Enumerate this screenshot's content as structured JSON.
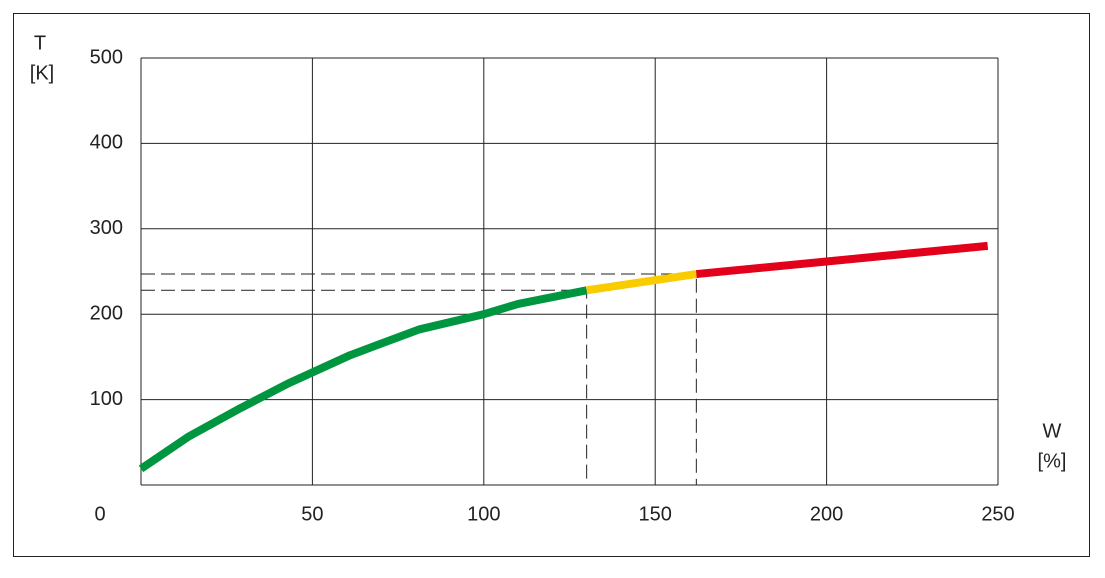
{
  "chart_data": {
    "type": "line",
    "x_label": "W",
    "x_unit": "[%]",
    "y_label": "T",
    "y_unit": "[K]",
    "xlim": [
      0,
      250
    ],
    "ylim": [
      0,
      500
    ],
    "xticks": [
      0,
      50,
      100,
      150,
      200,
      250
    ],
    "yticks": [
      100,
      200,
      300,
      400,
      500
    ],
    "grid": true,
    "series": [
      {
        "name": "green",
        "color": "#009640",
        "x": [
          0,
          14,
          29,
          43,
          61,
          81,
          100,
          110,
          130
        ],
        "values": [
          19,
          57,
          90,
          119,
          152,
          182,
          200,
          212,
          228
        ]
      },
      {
        "name": "yellow",
        "color": "#f9cc00",
        "x": [
          130,
          162
        ],
        "values": [
          228,
          247
        ]
      },
      {
        "name": "red",
        "color": "#e2001a",
        "x": [
          162,
          247
        ],
        "values": [
          247,
          280
        ]
      }
    ]
  }
}
